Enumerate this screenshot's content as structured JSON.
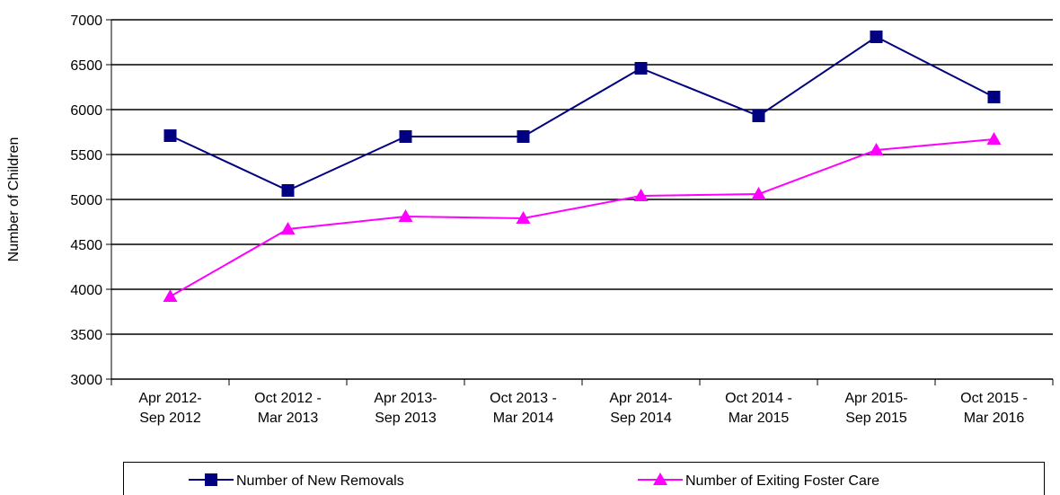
{
  "chart_data": {
    "type": "line",
    "ylabel": "Number of Children",
    "categories": [
      [
        "Apr 2012-",
        "Sep 2012"
      ],
      [
        "Oct 2012 -",
        "Mar 2013"
      ],
      [
        "Apr 2013-",
        "Sep 2013"
      ],
      [
        "Oct 2013 -",
        "Mar 2014"
      ],
      [
        "Apr 2014-",
        "Sep 2014"
      ],
      [
        "Oct 2014 -",
        "Mar 2015"
      ],
      [
        "Apr 2015-",
        "Sep 2015"
      ],
      [
        "Oct 2015 -",
        "Mar 2016"
      ]
    ],
    "series": [
      {
        "name": "Number of New Removals",
        "color": "#000080",
        "marker": "square",
        "values": [
          5710,
          5100,
          5700,
          5700,
          6460,
          5930,
          6810,
          6140
        ]
      },
      {
        "name": "Number of Exiting Foster Care",
        "color": "#ff00ff",
        "marker": "triangle",
        "values": [
          3920,
          4670,
          4810,
          4790,
          5040,
          5060,
          5550,
          5670
        ]
      }
    ],
    "ylim": [
      3000,
      7000
    ],
    "yticks": [
      3000,
      3500,
      4000,
      4500,
      5000,
      5500,
      6000,
      6500,
      7000
    ],
    "grid": true,
    "legend": "bottom"
  }
}
